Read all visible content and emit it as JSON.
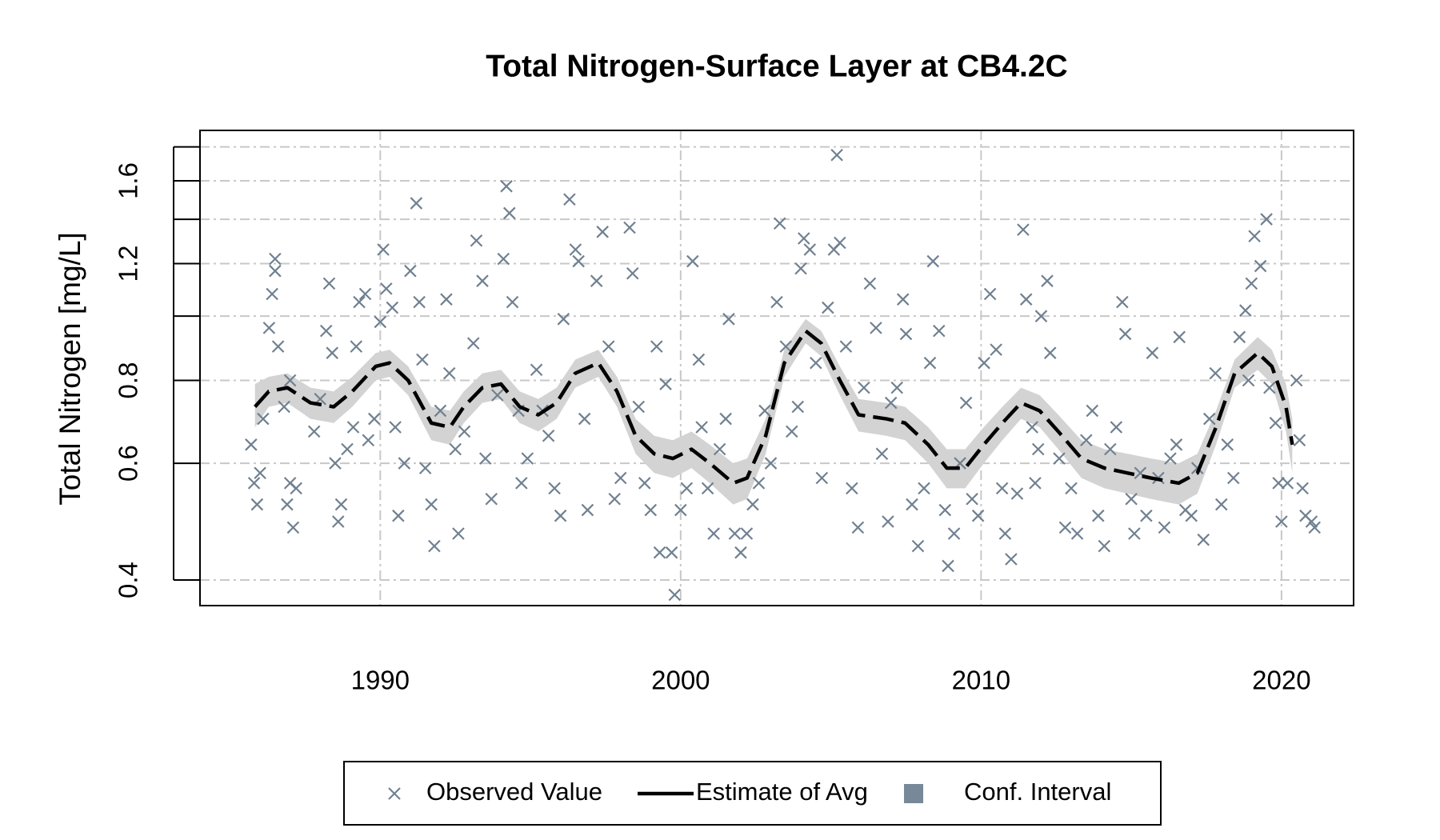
{
  "chart_data": {
    "type": "line",
    "title": "Total Nitrogen-Surface Layer at CB4.2C",
    "ylabel": "Total Nitrogen [mg/L]",
    "xlim": [
      1984,
      2022.4
    ],
    "xticks": [
      1990,
      2000,
      2010,
      2020
    ],
    "ylim": [
      0.366,
      1.906
    ],
    "yticks": [
      0.4,
      0.6,
      0.8,
      1.2,
      1.6
    ],
    "minor_yticks": [
      1.0,
      1.4,
      1.8
    ],
    "log_y": true,
    "grid": true,
    "legend": "bottom",
    "series": [
      {
        "name": "Observed Value",
        "type": "scatter",
        "color": "#708090",
        "x": [
          1985.7,
          1985.8,
          1985.9,
          1986.0,
          1986.1,
          1986.3,
          1986.4,
          1986.5,
          1986.5,
          1986.6,
          1986.8,
          1986.9,
          1987.0,
          1987.1,
          1987.2,
          1987.0,
          1987.8,
          1988.0,
          1988.2,
          1988.3,
          1988.4,
          1988.5,
          1988.6,
          1988.7,
          1988.9,
          1989.1,
          1989.2,
          1989.3,
          1989.5,
          1989.6,
          1989.8,
          1990.0,
          1990.1,
          1990.2,
          1990.4,
          1990.5,
          1990.6,
          1990.8,
          1991.0,
          1991.2,
          1991.3,
          1991.4,
          1991.5,
          1991.7,
          1991.8,
          1992.0,
          1992.2,
          1992.3,
          1992.5,
          1992.6,
          1992.8,
          1993.1,
          1993.2,
          1993.4,
          1993.5,
          1993.7,
          1993.9,
          1994.1,
          1994.2,
          1994.3,
          1994.4,
          1994.6,
          1994.7,
          1994.9,
          1995.2,
          1995.4,
          1995.6,
          1995.8,
          1996.0,
          1996.1,
          1996.3,
          1996.5,
          1996.6,
          1996.8,
          1996.9,
          1997.2,
          1997.4,
          1997.6,
          1997.8,
          1998.0,
          1998.3,
          1998.4,
          1998.6,
          1998.8,
          1999.0,
          1999.2,
          1999.3,
          1999.5,
          1999.7,
          1999.8,
          2000.0,
          2000.2,
          2000.4,
          2000.6,
          2000.7,
          2000.9,
          2001.1,
          2001.3,
          2001.5,
          2001.6,
          2001.8,
          2002.0,
          2002.2,
          2002.4,
          2002.6,
          2002.8,
          2003.0,
          2003.2,
          2003.3,
          2003.5,
          2003.7,
          2003.9,
          2004.0,
          2004.1,
          2004.3,
          2004.5,
          2004.7,
          2004.9,
          2005.1,
          2005.2,
          2005.3,
          2005.5,
          2005.7,
          2005.9,
          2006.1,
          2006.3,
          2006.5,
          2006.7,
          2006.9,
          2007.0,
          2007.2,
          2007.4,
          2007.5,
          2007.7,
          2007.9,
          2008.1,
          2008.3,
          2008.4,
          2008.6,
          2008.8,
          2008.9,
          2009.1,
          2009.3,
          2009.5,
          2009.7,
          2009.9,
          2010.1,
          2010.3,
          2010.5,
          2010.7,
          2010.8,
          2011.0,
          2011.2,
          2011.4,
          2011.5,
          2011.7,
          2011.8,
          2011.9,
          2012.0,
          2012.2,
          2012.3,
          2012.6,
          2012.8,
          2013.0,
          2013.2,
          2013.5,
          2013.7,
          2013.9,
          2014.1,
          2014.3,
          2014.5,
          2014.7,
          2014.8,
          2015.0,
          2015.1,
          2015.3,
          2015.5,
          2015.7,
          2015.9,
          2016.1,
          2016.3,
          2016.5,
          2016.6,
          2016.8,
          2017.0,
          2017.2,
          2017.4,
          2017.6,
          2017.8,
          2018.0,
          2018.2,
          2018.4,
          2018.6,
          2018.8,
          2018.9,
          2019.0,
          2019.1,
          2019.3,
          2019.5,
          2019.6,
          2019.8,
          2019.9,
          2020.0,
          2020.2,
          2020.5,
          2020.6,
          2020.7,
          2020.8,
          2021.0,
          2021.1
        ],
        "values": [
          0.64,
          0.56,
          0.52,
          0.58,
          0.7,
          0.96,
          1.08,
          1.22,
          1.17,
          0.9,
          0.73,
          0.52,
          0.56,
          0.48,
          0.55,
          0.8,
          0.67,
          0.75,
          0.95,
          1.12,
          0.88,
          0.6,
          0.49,
          0.52,
          0.63,
          0.68,
          0.9,
          1.05,
          1.08,
          0.65,
          0.7,
          0.98,
          1.26,
          1.1,
          1.03,
          0.68,
          0.5,
          0.6,
          1.17,
          1.48,
          1.05,
          0.86,
          0.59,
          0.52,
          0.45,
          0.72,
          1.06,
          0.82,
          0.63,
          0.47,
          0.67,
          0.91,
          1.3,
          1.13,
          0.61,
          0.53,
          0.76,
          1.22,
          1.57,
          1.43,
          1.05,
          0.72,
          0.56,
          0.61,
          0.83,
          0.72,
          0.66,
          0.55,
          0.5,
          0.99,
          1.5,
          1.26,
          1.21,
          0.7,
          0.51,
          1.13,
          1.34,
          0.9,
          0.53,
          0.57,
          1.36,
          1.16,
          0.73,
          0.56,
          0.51,
          0.9,
          0.44,
          0.79,
          0.44,
          0.38,
          0.51,
          0.55,
          1.21,
          0.86,
          0.68,
          0.55,
          0.47,
          0.63,
          0.7,
          0.99,
          0.47,
          0.44,
          0.47,
          0.52,
          0.56,
          0.72,
          0.6,
          1.05,
          1.38,
          0.9,
          0.67,
          0.73,
          1.18,
          1.31,
          1.26,
          0.85,
          0.57,
          1.03,
          1.26,
          1.75,
          1.29,
          0.9,
          0.55,
          0.48,
          0.78,
          1.12,
          0.96,
          0.62,
          0.49,
          0.74,
          0.78,
          1.06,
          0.94,
          0.52,
          0.45,
          0.55,
          0.85,
          1.21,
          0.95,
          0.51,
          0.42,
          0.47,
          0.6,
          0.74,
          0.53,
          0.5,
          0.85,
          1.08,
          0.89,
          0.55,
          0.47,
          0.43,
          0.54,
          1.35,
          1.06,
          0.68,
          0.56,
          0.63,
          1.0,
          1.13,
          0.88,
          0.61,
          0.48,
          0.55,
          0.47,
          0.65,
          0.72,
          0.5,
          0.45,
          0.63,
          0.68,
          1.05,
          0.94,
          0.53,
          0.47,
          0.58,
          0.5,
          0.88,
          0.57,
          0.48,
          0.61,
          0.64,
          0.93,
          0.51,
          0.5,
          0.59,
          0.46,
          0.7,
          0.82,
          0.52,
          0.64,
          0.57,
          0.93,
          1.02,
          0.8,
          1.12,
          1.32,
          1.19,
          1.4,
          0.78,
          0.69,
          0.56,
          0.49,
          0.56,
          0.8,
          0.65,
          0.55,
          0.5,
          0.49,
          0.48
        ]
      },
      {
        "name": "Estimate of Avg",
        "type": "line",
        "color": "#000000",
        "dash": true,
        "x": [
          1985.83,
          1986.29,
          1986.91,
          1987.68,
          1988.45,
          1989.07,
          1989.85,
          1990.31,
          1990.93,
          1991.7,
          1992.32,
          1992.78,
          1993.4,
          1994.02,
          1994.64,
          1995.26,
          1995.87,
          1996.49,
          1997.26,
          1997.88,
          1998.5,
          1999.12,
          1999.74,
          2000.36,
          2000.97,
          2001.75,
          2002.21,
          2002.83,
          2003.45,
          2004.16,
          2004.68,
          2005.3,
          2005.92,
          2006.85,
          2007.47,
          2008.24,
          2008.86,
          2009.47,
          2010.09,
          2010.71,
          2011.33,
          2011.95,
          2012.57,
          2013.34,
          2014.11,
          2014.88,
          2015.66,
          2016.58,
          2017.2,
          2017.82,
          2018.44,
          2019.21,
          2019.68,
          2020.15,
          2020.36
        ],
        "values": [
          0.73,
          0.77,
          0.78,
          0.74,
          0.73,
          0.77,
          0.84,
          0.85,
          0.8,
          0.69,
          0.68,
          0.73,
          0.78,
          0.79,
          0.73,
          0.71,
          0.74,
          0.82,
          0.85,
          0.77,
          0.66,
          0.62,
          0.61,
          0.63,
          0.6,
          0.56,
          0.57,
          0.66,
          0.85,
          0.95,
          0.91,
          0.8,
          0.71,
          0.7,
          0.69,
          0.64,
          0.59,
          0.59,
          0.64,
          0.69,
          0.74,
          0.72,
          0.67,
          0.61,
          0.59,
          0.58,
          0.57,
          0.56,
          0.58,
          0.68,
          0.82,
          0.88,
          0.84,
          0.73,
          0.64
        ]
      },
      {
        "name": "Conf. Interval",
        "type": "band",
        "color": "#d3d3d3",
        "legend_color": "#778899",
        "x": [
          1985.83,
          1986.29,
          1986.91,
          1987.68,
          1988.45,
          1989.07,
          1989.85,
          1990.31,
          1990.93,
          1991.7,
          1992.32,
          1992.78,
          1993.4,
          1994.02,
          1994.64,
          1995.26,
          1995.87,
          1996.49,
          1997.26,
          1997.88,
          1998.5,
          1999.12,
          1999.74,
          2000.36,
          2000.97,
          2001.75,
          2002.21,
          2002.83,
          2003.45,
          2004.16,
          2004.68,
          2005.3,
          2005.92,
          2006.85,
          2007.47,
          2008.24,
          2008.86,
          2009.47,
          2010.09,
          2010.71,
          2011.33,
          2011.95,
          2012.57,
          2013.34,
          2014.11,
          2014.88,
          2015.66,
          2016.58,
          2017.2,
          2017.82,
          2018.44,
          2019.21,
          2019.68,
          2020.15,
          2020.36
        ],
        "upper": [
          0.79,
          0.81,
          0.82,
          0.78,
          0.77,
          0.81,
          0.88,
          0.89,
          0.84,
          0.73,
          0.72,
          0.77,
          0.82,
          0.83,
          0.77,
          0.75,
          0.78,
          0.86,
          0.89,
          0.81,
          0.7,
          0.66,
          0.65,
          0.67,
          0.64,
          0.6,
          0.61,
          0.7,
          0.89,
          0.99,
          0.95,
          0.84,
          0.75,
          0.74,
          0.73,
          0.68,
          0.63,
          0.63,
          0.68,
          0.73,
          0.78,
          0.76,
          0.71,
          0.65,
          0.63,
          0.62,
          0.61,
          0.6,
          0.62,
          0.72,
          0.86,
          0.93,
          0.89,
          0.79,
          0.7
        ],
        "lower": [
          0.68,
          0.73,
          0.74,
          0.7,
          0.69,
          0.73,
          0.8,
          0.81,
          0.76,
          0.65,
          0.64,
          0.69,
          0.74,
          0.75,
          0.69,
          0.67,
          0.7,
          0.78,
          0.81,
          0.73,
          0.62,
          0.58,
          0.57,
          0.59,
          0.56,
          0.52,
          0.53,
          0.62,
          0.81,
          0.91,
          0.87,
          0.76,
          0.67,
          0.66,
          0.65,
          0.6,
          0.55,
          0.55,
          0.6,
          0.65,
          0.7,
          0.68,
          0.63,
          0.57,
          0.55,
          0.54,
          0.53,
          0.52,
          0.54,
          0.64,
          0.78,
          0.83,
          0.79,
          0.67,
          0.58
        ]
      }
    ]
  }
}
